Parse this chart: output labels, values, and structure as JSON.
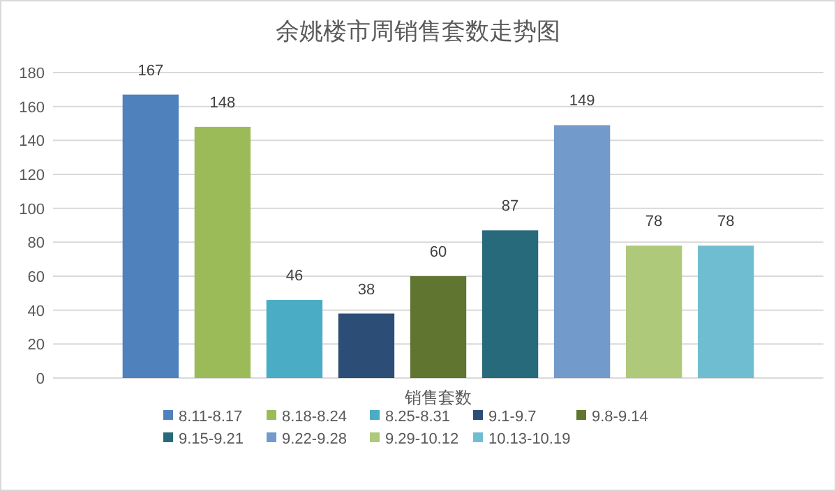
{
  "chart_data": {
    "type": "bar",
    "title": "余姚楼市周销售套数走势图",
    "categories": [
      "销售套数"
    ],
    "series": [
      {
        "name": "8.11-8.17",
        "color": "#4f81bd",
        "values": [
          167
        ]
      },
      {
        "name": "8.18-8.24",
        "color": "#9bbb59",
        "values": [
          148
        ]
      },
      {
        "name": "8.25-8.31",
        "color": "#4bacc6",
        "values": [
          46
        ]
      },
      {
        "name": "9.1-9.7",
        "color": "#2c4d75",
        "values": [
          38
        ]
      },
      {
        "name": "9.8-9.14",
        "color": "#5f7530",
        "values": [
          60
        ]
      },
      {
        "name": "9.15-9.21",
        "color": "#276a7c",
        "values": [
          87
        ]
      },
      {
        "name": "9.22-9.28",
        "color": "#729aca",
        "values": [
          149
        ]
      },
      {
        "name": "9.29-10.12",
        "color": "#afc97a",
        "values": [
          78
        ]
      },
      {
        "name": "10.13-10.19",
        "color": "#6fbdd1",
        "values": [
          78
        ]
      }
    ],
    "ylim": [
      0,
      180
    ],
    "yticks": [
      0,
      20,
      40,
      60,
      80,
      100,
      120,
      140,
      160,
      180
    ],
    "grid": "y",
    "legend": "bottom",
    "data_labels": true
  }
}
